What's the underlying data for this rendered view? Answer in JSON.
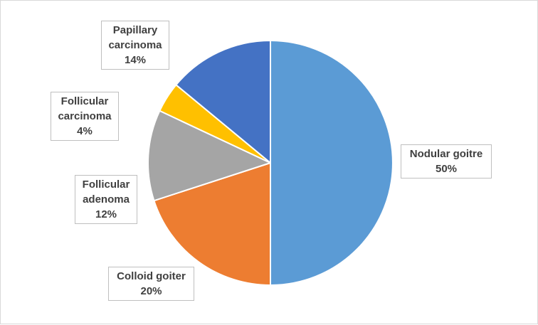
{
  "chart_data": {
    "type": "pie",
    "slices": [
      {
        "name": "Nodular goitre",
        "value": 50,
        "label_lines": [
          "Nodular goitre"
        ],
        "pct_text": "50%",
        "color": "#5B9BD5"
      },
      {
        "name": "Colloid goiter",
        "value": 20,
        "label_lines": [
          "Colloid goiter"
        ],
        "pct_text": "20%",
        "color": "#ED7D31"
      },
      {
        "name": "Follicular adenoma",
        "value": 12,
        "label_lines": [
          "Follicular",
          "adenoma"
        ],
        "pct_text": "12%",
        "color": "#A5A5A5"
      },
      {
        "name": "Follicular carcinoma",
        "value": 4,
        "label_lines": [
          "Follicular",
          "carcinoma"
        ],
        "pct_text": "4%",
        "color": "#FFC000"
      },
      {
        "name": "Papillary carcinoma",
        "value": 14,
        "label_lines": [
          "Papillary",
          "carcinoma"
        ],
        "pct_text": "14%",
        "color": "#4472C4"
      }
    ],
    "start_angle_deg": 0,
    "direction": "clockwise",
    "slice_border_color": "#ffffff",
    "legend": "none",
    "data_labels": "outside-callout"
  }
}
